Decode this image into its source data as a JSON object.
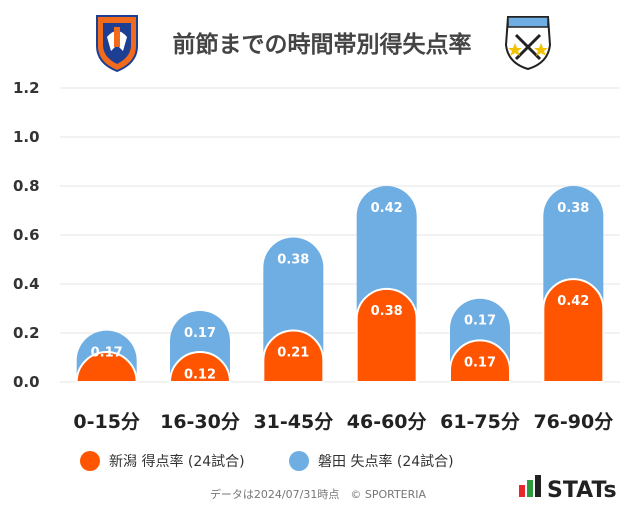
{
  "colors": {
    "niigata": "#FF5500",
    "iwata": "#6FAEE3",
    "grid": "#E4E4E4",
    "title": "#444444"
  },
  "logos": {
    "left": "albirex-niigata-crest-icon",
    "right": "jubilo-iwata-crest-icon",
    "stats": "stats-logo-icon"
  },
  "header": {
    "title": "前節までの時間帯別得失点率"
  },
  "legend": {
    "niigata": "新潟 得点率 (24試合)",
    "iwata": "磐田 失点率 (24試合)"
  },
  "footer": {
    "note": "データは2024/07/31時点　© SPORTERIA",
    "brand": "STATs"
  },
  "chart_data": {
    "type": "bar",
    "stacked": true,
    "title": "前節までの時間帯別得失点率",
    "categories": [
      "0-15分",
      "16-30分",
      "31-45分",
      "46-60分",
      "61-75分",
      "76-90分"
    ],
    "series": [
      {
        "name": "新潟 得点率 (24試合)",
        "values": [
          0.04,
          0.12,
          0.21,
          0.38,
          0.17,
          0.42
        ],
        "labels": [
          "",
          "0.12",
          "0.21",
          "0.38",
          "0.17",
          "0.42"
        ]
      },
      {
        "name": "磐田 失点率 (24試合)",
        "values": [
          0.17,
          0.17,
          0.38,
          0.42,
          0.17,
          0.38
        ],
        "labels": [
          "0.17",
          "0.17",
          "0.38",
          "0.42",
          "0.17",
          "0.38"
        ]
      }
    ],
    "yticks": [
      "0.0",
      "0.2",
      "0.4",
      "0.6",
      "0.8",
      "1.0",
      "1.2"
    ],
    "ylim": [
      0,
      1.2
    ],
    "grid": true,
    "legend_position": "bottom-left"
  }
}
